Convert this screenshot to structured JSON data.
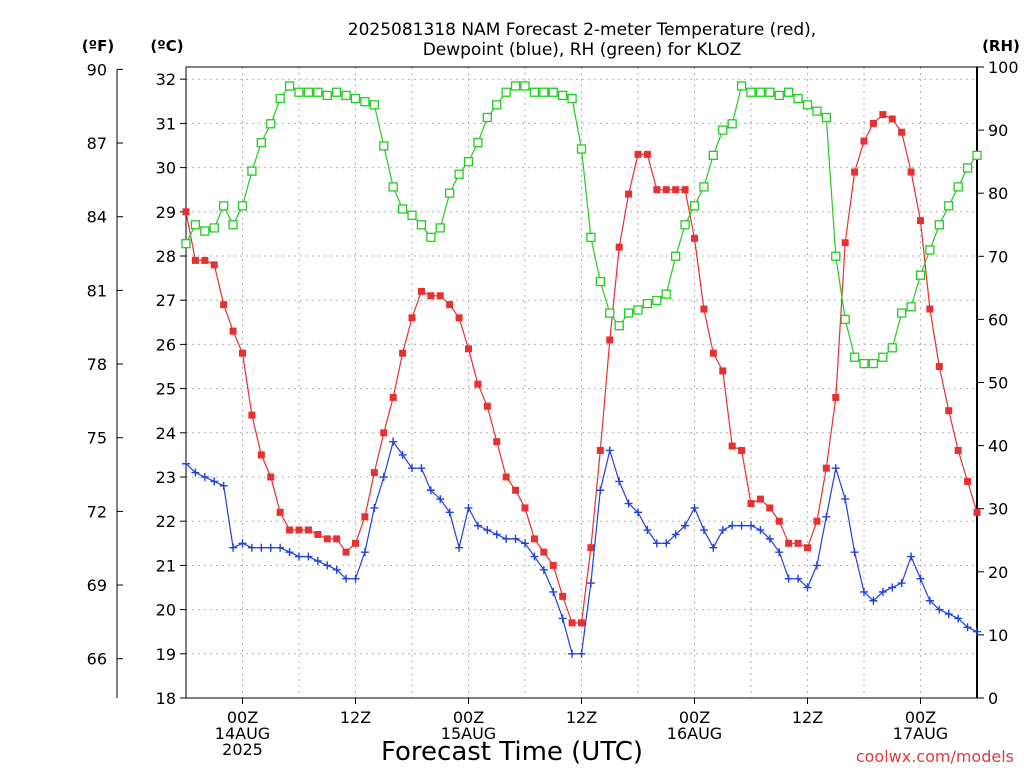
{
  "chart_data": {
    "type": "line",
    "title_line1": "2025081318 NAM Forecast 2-meter Temperature (red),",
    "title_line2": "Dewpoint (blue), RH (green) for KLOZ",
    "xlabel": "Forecast Time (UTC)",
    "credit": "coolwx.com/models",
    "units": {
      "fahrenheit": "(ºF)",
      "celsius": "(ºC)",
      "rh": "(RH)"
    },
    "grid": true,
    "x_axis": {
      "start_hour": 18,
      "end_hour": 102,
      "ticks": [
        {
          "hour": 24,
          "label1": "00Z",
          "label2": "14AUG",
          "label3": "2025"
        },
        {
          "hour": 36,
          "label1": "12Z",
          "label2": "",
          "label3": ""
        },
        {
          "hour": 48,
          "label1": "00Z",
          "label2": "15AUG",
          "label3": ""
        },
        {
          "hour": 60,
          "label1": "12Z",
          "label2": "",
          "label3": ""
        },
        {
          "hour": 72,
          "label1": "00Z",
          "label2": "16AUG",
          "label3": ""
        },
        {
          "hour": 84,
          "label1": "12Z",
          "label2": "",
          "label3": ""
        },
        {
          "hour": 96,
          "label1": "00Z",
          "label2": "17AUG",
          "label3": ""
        }
      ]
    },
    "y_celsius": {
      "ylim": [
        18,
        32.3
      ],
      "ticks": [
        "18",
        "19",
        "20",
        "21",
        "22",
        "23",
        "24",
        "25",
        "26",
        "27",
        "28",
        "29",
        "30",
        "31",
        "32"
      ]
    },
    "y_fahrenheit": {
      "ticks": [
        "66",
        "69",
        "72",
        "75",
        "78",
        "81",
        "84",
        "87",
        "90"
      ]
    },
    "y_rh": {
      "ylim": [
        0,
        100
      ],
      "ticks": [
        "0",
        "10",
        "20",
        "30",
        "40",
        "50",
        "60",
        "70",
        "80",
        "90",
        "100"
      ]
    },
    "series": [
      {
        "name": "Temperature",
        "color": "#e83030",
        "axis": "celsius",
        "marker": "filled-square",
        "x": [
          18,
          19,
          20,
          21,
          22,
          23,
          24,
          25,
          26,
          27,
          28,
          29,
          30,
          31,
          32,
          33,
          34,
          35,
          36,
          37,
          38,
          39,
          40,
          41,
          42,
          43,
          44,
          45,
          46,
          47,
          48,
          49,
          50,
          51,
          52,
          53,
          54,
          55,
          56,
          57,
          58,
          59,
          60,
          61,
          62,
          63,
          64,
          65,
          66,
          67,
          68,
          69,
          70,
          71,
          72,
          73,
          74,
          75,
          76,
          77,
          78,
          79,
          80,
          81,
          82,
          83,
          84,
          85,
          86,
          87,
          88,
          89,
          90,
          91,
          92,
          93,
          94,
          95,
          96,
          97,
          98,
          99,
          100,
          101,
          102
        ],
        "values": [
          29.0,
          27.9,
          27.9,
          27.8,
          26.9,
          26.3,
          25.8,
          24.4,
          23.5,
          23.0,
          22.2,
          21.8,
          21.8,
          21.8,
          21.7,
          21.6,
          21.6,
          21.3,
          21.5,
          22.1,
          23.1,
          24.0,
          24.8,
          25.8,
          26.6,
          27.2,
          27.1,
          27.1,
          26.9,
          26.6,
          25.9,
          25.1,
          24.6,
          23.8,
          23.0,
          22.7,
          22.3,
          21.6,
          21.3,
          21.0,
          20.3,
          19.7,
          19.7,
          21.4,
          23.6,
          26.1,
          28.2,
          29.4,
          30.3,
          30.3,
          29.5,
          29.5,
          29.5,
          29.5,
          28.4,
          26.8,
          25.8,
          25.4,
          23.7,
          23.6,
          22.4,
          22.5,
          22.3,
          22.0,
          21.5,
          21.5,
          21.4,
          22.0,
          23.2,
          24.8,
          28.3,
          29.9,
          30.6,
          31.0,
          31.2,
          31.1,
          30.8,
          29.9,
          28.8,
          26.8,
          25.5,
          24.5,
          23.6,
          22.9,
          22.2
        ]
      },
      {
        "name": "Dewpoint",
        "color": "#2040e0",
        "axis": "celsius",
        "marker": "plus",
        "x": [
          18,
          19,
          20,
          21,
          22,
          23,
          24,
          25,
          26,
          27,
          28,
          29,
          30,
          31,
          32,
          33,
          34,
          35,
          36,
          37,
          38,
          39,
          40,
          41,
          42,
          43,
          44,
          45,
          46,
          47,
          48,
          49,
          50,
          51,
          52,
          53,
          54,
          55,
          56,
          57,
          58,
          59,
          60,
          61,
          62,
          63,
          64,
          65,
          66,
          67,
          68,
          69,
          70,
          71,
          72,
          73,
          74,
          75,
          76,
          77,
          78,
          79,
          80,
          81,
          82,
          83,
          84,
          85,
          86,
          87,
          88,
          89,
          90,
          91,
          92,
          93,
          94,
          95,
          96,
          97,
          98,
          99,
          100,
          101,
          102
        ],
        "values": [
          23.3,
          23.1,
          23.0,
          22.9,
          22.8,
          21.4,
          21.5,
          21.4,
          21.4,
          21.4,
          21.4,
          21.3,
          21.2,
          21.2,
          21.1,
          21.0,
          20.9,
          20.7,
          20.7,
          21.3,
          22.3,
          23.0,
          23.8,
          23.5,
          23.2,
          23.2,
          22.7,
          22.5,
          22.2,
          21.4,
          22.3,
          21.9,
          21.8,
          21.7,
          21.6,
          21.6,
          21.5,
          21.2,
          20.9,
          20.4,
          19.8,
          19.0,
          19.0,
          20.6,
          22.7,
          23.6,
          22.9,
          22.4,
          22.2,
          21.8,
          21.5,
          21.5,
          21.7,
          21.9,
          22.3,
          21.8,
          21.4,
          21.8,
          21.9,
          21.9,
          21.9,
          21.8,
          21.6,
          21.3,
          20.7,
          20.7,
          20.5,
          21.0,
          22.1,
          23.2,
          22.5,
          21.3,
          20.4,
          20.2,
          20.4,
          20.5,
          20.6,
          21.2,
          20.7,
          20.2,
          20.0,
          19.9,
          19.8,
          19.6,
          19.5
        ]
      },
      {
        "name": "RH",
        "color": "#22cc22",
        "axis": "rh",
        "marker": "open-square",
        "x": [
          18,
          19,
          20,
          21,
          22,
          23,
          24,
          25,
          26,
          27,
          28,
          29,
          30,
          31,
          32,
          33,
          34,
          35,
          36,
          37,
          38,
          39,
          40,
          41,
          42,
          43,
          44,
          45,
          46,
          47,
          48,
          49,
          50,
          51,
          52,
          53,
          54,
          55,
          56,
          57,
          58,
          59,
          60,
          61,
          62,
          63,
          64,
          65,
          66,
          67,
          68,
          69,
          70,
          71,
          72,
          73,
          74,
          75,
          76,
          77,
          78,
          79,
          80,
          81,
          82,
          83,
          84,
          85,
          86,
          87,
          88,
          89,
          90,
          91,
          92,
          93,
          94,
          95,
          96,
          97,
          98,
          99,
          100,
          101,
          102
        ],
        "values": [
          72,
          75,
          74,
          74.5,
          78,
          75,
          78,
          83.5,
          88,
          91,
          95,
          97,
          96,
          96,
          96,
          95.5,
          96,
          95.5,
          95,
          94.5,
          94,
          87.5,
          81,
          77.5,
          76.5,
          75,
          73,
          74.5,
          80,
          83,
          85,
          88,
          92,
          94,
          96,
          97,
          97,
          96,
          96,
          96,
          95.5,
          95,
          87,
          73,
          66,
          61,
          59,
          61,
          61.5,
          62.5,
          63,
          64,
          70,
          75,
          78,
          81,
          86,
          90,
          91,
          97,
          96,
          96,
          96,
          95.5,
          96,
          95,
          94,
          93,
          92,
          70,
          60,
          54,
          53,
          53,
          54,
          55.5,
          61,
          62,
          67,
          71,
          75,
          78,
          81,
          84,
          86
        ]
      }
    ]
  }
}
